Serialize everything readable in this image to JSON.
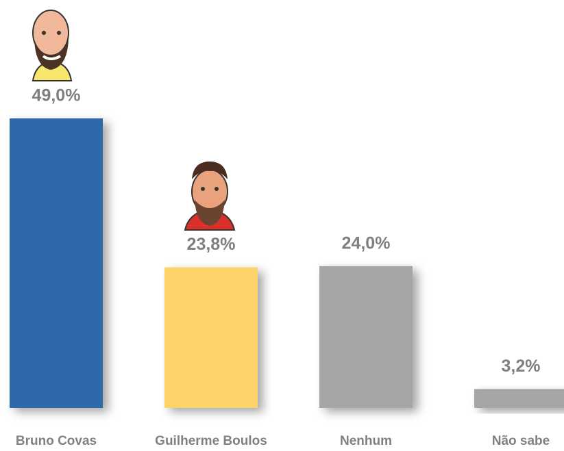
{
  "chart_data": {
    "type": "bar",
    "categories": [
      "Bruno Covas",
      "Guilherme Boulos",
      "Nenhum",
      "Não sabe"
    ],
    "values": [
      49.0,
      23.8,
      24.0,
      3.2
    ],
    "value_labels": [
      "49,0%",
      "23,8%",
      "24,0%",
      "3,2%"
    ],
    "colors": [
      "#2e6ba9",
      "#fdd46b",
      "#a6a6a6",
      "#a6a6a6"
    ]
  }
}
